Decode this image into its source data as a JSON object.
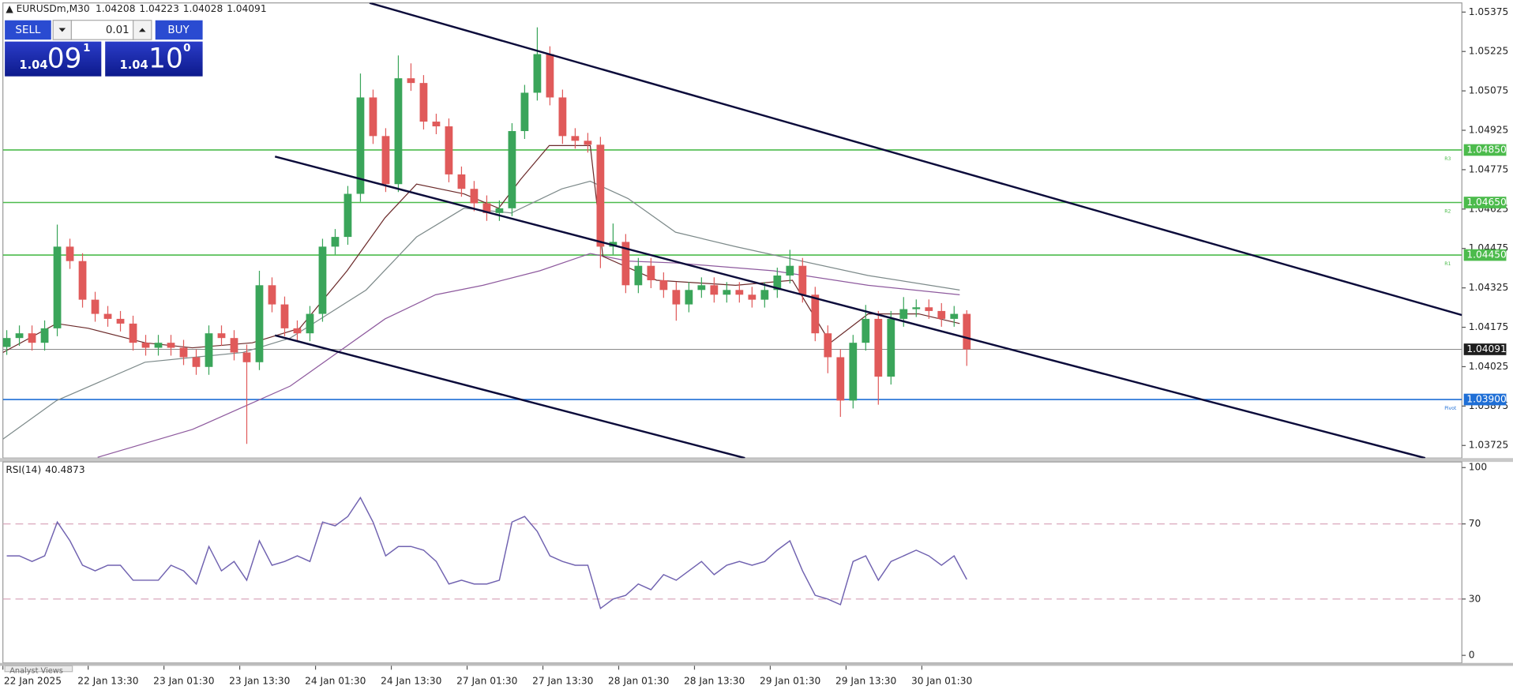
{
  "chart_data": [
    {
      "type": "candlestick",
      "title": "EURUSDm,M30",
      "header_values": [
        1.04208,
        1.04223,
        1.04028,
        1.04091
      ],
      "x": [
        0,
        4,
        8,
        12,
        16,
        20,
        24,
        28,
        32,
        36,
        40,
        44,
        48,
        52,
        56,
        60,
        64,
        68,
        72,
        76,
        80,
        84,
        88,
        92,
        96,
        100,
        104,
        108,
        112,
        116,
        120,
        124,
        128,
        132,
        136,
        140,
        144,
        148,
        152,
        156,
        160,
        164,
        168,
        172,
        176,
        180,
        184,
        188,
        192,
        196,
        200,
        204,
        208,
        212,
        216,
        220,
        224,
        228,
        232,
        236,
        240,
        244,
        248,
        252,
        256,
        260,
        264,
        268,
        272,
        276,
        280,
        284,
        288,
        292,
        296,
        300,
        304
      ],
      "open": [
        1.041,
        1.04134,
        1.04152,
        1.04116,
        1.04171,
        1.04482,
        1.04427,
        1.0428,
        1.04226,
        1.04207,
        1.04189,
        1.04116,
        1.04097,
        1.04116,
        1.04097,
        1.04061,
        1.04024,
        1.04152,
        1.04134,
        1.04079,
        1.04042,
        1.04335,
        1.04262,
        1.04171,
        1.04152,
        1.04226,
        1.04482,
        1.04519,
        1.04683,
        1.0505,
        1.04903,
        1.0472,
        1.05123,
        1.05105,
        1.04958,
        1.0494,
        1.04757,
        1.04702,
        1.04647,
        1.0461,
        1.04628,
        1.04922,
        1.05068,
        1.05215,
        1.0505,
        1.04903,
        1.04885,
        1.0487,
        1.04482,
        1.045,
        1.04335,
        1.04409,
        1.04354,
        1.04317,
        1.04262,
        1.04317,
        1.04335,
        1.04299,
        1.04317,
        1.04299,
        1.0428,
        1.04317,
        1.04372,
        1.04409,
        1.04299,
        1.04152,
        1.04061,
        1.03896,
        1.04116,
        1.04207,
        1.03987,
        1.04207,
        1.04244,
        1.04251,
        1.04237,
        1.04207,
        1.04226
      ],
      "high": [
        1.04164,
        1.04182,
        1.04182,
        1.04201,
        1.04566,
        1.04512,
        1.04457,
        1.0431,
        1.04256,
        1.04237,
        1.04219,
        1.04146,
        1.04146,
        1.04146,
        1.04127,
        1.04091,
        1.04182,
        1.04182,
        1.04164,
        1.04109,
        1.0439,
        1.04365,
        1.04292,
        1.04201,
        1.04256,
        1.04512,
        1.04549,
        1.04713,
        1.05141,
        1.0508,
        1.04933,
        1.0521,
        1.0518,
        1.05135,
        1.04988,
        1.0497,
        1.04787,
        1.04732,
        1.04677,
        1.04658,
        1.04952,
        1.05098,
        1.05317,
        1.05245,
        1.0508,
        1.04933,
        1.04915,
        1.049,
        1.0457,
        1.0453,
        1.04439,
        1.04439,
        1.04384,
        1.04347,
        1.04347,
        1.04365,
        1.04365,
        1.04347,
        1.04347,
        1.04329,
        1.04347,
        1.04402,
        1.0447,
        1.04439,
        1.04329,
        1.04182,
        1.04091,
        1.04146,
        1.0426,
        1.04237,
        1.04237,
        1.0429,
        1.04281,
        1.04281,
        1.04267,
        1.04256,
        1.0424
      ],
      "low": [
        1.0407,
        1.04104,
        1.04086,
        1.04086,
        1.04141,
        1.04397,
        1.0425,
        1.04196,
        1.04177,
        1.04159,
        1.04086,
        1.04067,
        1.04067,
        1.04067,
        1.04031,
        1.03994,
        1.03994,
        1.04104,
        1.04049,
        1.03731,
        1.04012,
        1.04232,
        1.04141,
        1.04122,
        1.04122,
        1.04196,
        1.04452,
        1.04489,
        1.04653,
        1.04873,
        1.0469,
        1.0469,
        1.05075,
        1.04928,
        1.0491,
        1.04727,
        1.04672,
        1.04617,
        1.0458,
        1.0458,
        1.04598,
        1.04892,
        1.05038,
        1.0502,
        1.04873,
        1.04855,
        1.0484,
        1.044,
        1.04452,
        1.04305,
        1.04305,
        1.04324,
        1.04287,
        1.042,
        1.04232,
        1.04287,
        1.04269,
        1.04269,
        1.04269,
        1.0425,
        1.0425,
        1.04287,
        1.04342,
        1.04269,
        1.04122,
        1.04,
        1.03834,
        1.03866,
        1.04086,
        1.0388,
        1.03957,
        1.04177,
        1.04214,
        1.04207,
        1.04177,
        1.04177,
        1.04028
      ],
      "close": [
        1.04134,
        1.04152,
        1.04116,
        1.04171,
        1.04482,
        1.04427,
        1.0428,
        1.04226,
        1.04207,
        1.04189,
        1.04116,
        1.04097,
        1.04116,
        1.04097,
        1.04061,
        1.04024,
        1.04152,
        1.04134,
        1.04079,
        1.04042,
        1.04335,
        1.04262,
        1.04171,
        1.04152,
        1.04226,
        1.04482,
        1.04519,
        1.04683,
        1.0505,
        1.04903,
        1.0472,
        1.05123,
        1.05105,
        1.04958,
        1.0494,
        1.04757,
        1.04702,
        1.04647,
        1.0461,
        1.04628,
        1.04922,
        1.05068,
        1.05215,
        1.0505,
        1.04903,
        1.04885,
        1.0487,
        1.04482,
        1.045,
        1.04335,
        1.04409,
        1.04354,
        1.04317,
        1.04262,
        1.04317,
        1.04335,
        1.04299,
        1.04317,
        1.04299,
        1.0428,
        1.04317,
        1.04372,
        1.04409,
        1.04299,
        1.04152,
        1.04061,
        1.03896,
        1.04116,
        1.04207,
        1.03987,
        1.04207,
        1.04244,
        1.04251,
        1.04237,
        1.04207,
        1.04226,
        1.04091
      ],
      "up_color": "#3aa55a",
      "down_color": "#e05a5a",
      "overlays": [
        {
          "color": "#8e5a9e",
          "x": [
            30,
            60,
            91,
            121,
            137,
            152,
            170,
            186,
            198,
            213,
            244,
            274,
            303
          ],
          "values": [
            1.0368,
            1.03786,
            1.03951,
            1.04207,
            1.04299,
            1.04335,
            1.0439,
            1.04456,
            1.04427,
            1.0442,
            1.0439,
            1.04335,
            1.04299
          ]
        },
        {
          "color": "#7d8a8a",
          "x": [
            0,
            17,
            45,
            76,
            91,
            115,
            131,
            146,
            161,
            177,
            186,
            198,
            213,
            232,
            253,
            274,
            303
          ],
          "values": [
            1.03749,
            1.03896,
            1.04042,
            1.04079,
            1.04134,
            1.04317,
            1.04519,
            1.04628,
            1.0461,
            1.04702,
            1.04731,
            1.04665,
            1.04537,
            1.04482,
            1.04427,
            1.04372,
            1.04317
          ]
        },
        {
          "color": "#6b2a2a",
          "x": [
            0,
            17,
            27,
            45,
            60,
            79,
            94,
            109,
            121,
            131,
            146,
            157,
            164,
            173,
            186,
            190,
            207,
            232,
            250,
            262,
            274,
            290,
            303
          ],
          "values": [
            1.04079,
            1.04189,
            1.04171,
            1.04116,
            1.04097,
            1.04116,
            1.04171,
            1.0439,
            1.04592,
            1.0472,
            1.04683,
            1.04628,
            1.04739,
            1.04867,
            1.04867,
            1.04445,
            1.04354,
            1.04335,
            1.04354,
            1.04116,
            1.04226,
            1.04226,
            1.04189
          ]
        }
      ],
      "levels": [
        {
          "name": "R3",
          "value": 1.0485,
          "label": "1.04850",
          "color": "#4cbb4c"
        },
        {
          "name": "R2",
          "value": 1.0465,
          "label": "1.04650",
          "color": "#4cbb4c"
        },
        {
          "name": "R1",
          "value": 1.0445,
          "label": "1.04450",
          "color": "#4cbb4c"
        },
        {
          "name": "Pivot",
          "value": 1.039,
          "label": "1.03900",
          "color": "#1f6fd6"
        }
      ],
      "current_price": 1.04091,
      "current_color": "#1e1e1e",
      "xlim": [
        0,
        462
      ],
      "ylim": [
        1.03677,
        1.0541
      ],
      "yticks": [
        1.05375,
        1.05225,
        1.05075,
        1.04925,
        1.04775,
        1.04625,
        1.04475,
        1.04325,
        1.04175,
        1.04025,
        1.03875,
        1.03725
      ],
      "xticks": [
        {
          "value": 0,
          "label": "22 Jan 2025"
        },
        {
          "value": 27,
          "label": "22 Jan 13:30"
        },
        {
          "value": 51,
          "label": "23 Jan 01:30"
        },
        {
          "value": 75,
          "label": "23 Jan 13:30"
        },
        {
          "value": 99,
          "label": "24 Jan 01:30"
        },
        {
          "value": 123,
          "label": "24 Jan 13:30"
        },
        {
          "value": 147,
          "label": "27 Jan 01:30"
        },
        {
          "value": 171,
          "label": "27 Jan 13:30"
        },
        {
          "value": 195,
          "label": "28 Jan 01:30"
        },
        {
          "value": 219,
          "label": "28 Jan 13:30"
        },
        {
          "value": 243,
          "label": "29 Jan 01:30"
        },
        {
          "value": 267,
          "label": "29 Jan 13:30"
        },
        {
          "value": 291,
          "label": "30 Jan 01:30"
        }
      ]
    },
    {
      "type": "line",
      "title": "RSI(14)",
      "last_value": 40.4873,
      "color": "#7062b0",
      "x": [
        0,
        4,
        8,
        12,
        16,
        20,
        24,
        28,
        32,
        36,
        40,
        44,
        48,
        52,
        56,
        60,
        64,
        68,
        72,
        76,
        80,
        84,
        88,
        92,
        96,
        100,
        104,
        108,
        112,
        116,
        120,
        124,
        128,
        132,
        136,
        140,
        144,
        148,
        152,
        156,
        160,
        164,
        168,
        172,
        176,
        180,
        184,
        188,
        192,
        196,
        200,
        204,
        208,
        212,
        216,
        220,
        224,
        228,
        232,
        236,
        240,
        244,
        248,
        252,
        256,
        260,
        264,
        268,
        272,
        276,
        280,
        284,
        288,
        292,
        296,
        300,
        304
      ],
      "values": [
        53,
        53,
        50,
        53,
        71,
        61,
        48,
        45,
        48,
        48,
        40,
        40,
        40,
        48,
        45,
        38,
        58,
        45,
        50,
        40,
        61,
        48,
        50,
        53,
        50,
        71,
        69,
        74,
        84,
        71,
        53,
        58,
        58,
        56,
        50,
        38,
        40,
        38,
        38,
        40,
        71,
        74,
        66,
        53,
        50,
        48,
        48,
        25,
        30,
        32,
        38,
        35,
        43,
        40,
        45,
        50,
        43,
        48,
        50,
        48,
        50,
        56,
        61,
        45,
        32,
        30,
        27,
        50,
        53,
        40,
        50,
        53,
        56,
        53,
        48,
        53,
        40.4873
      ],
      "levels": [
        70,
        30
      ],
      "level_color": "#d9a8bc",
      "ylim": [
        -3,
        103
      ],
      "yticks": [
        100,
        70,
        30,
        0
      ]
    }
  ],
  "trade_panel": {
    "sell": "SELL",
    "lot": "0.01",
    "buy": "BUY",
    "bid_prefix": "1.04",
    "bid_big": "09",
    "bid_small": "1",
    "ask_prefix": "1.04",
    "ask_big": "10",
    "ask_small": "0"
  },
  "tabs": [
    "Analyst Views"
  ]
}
